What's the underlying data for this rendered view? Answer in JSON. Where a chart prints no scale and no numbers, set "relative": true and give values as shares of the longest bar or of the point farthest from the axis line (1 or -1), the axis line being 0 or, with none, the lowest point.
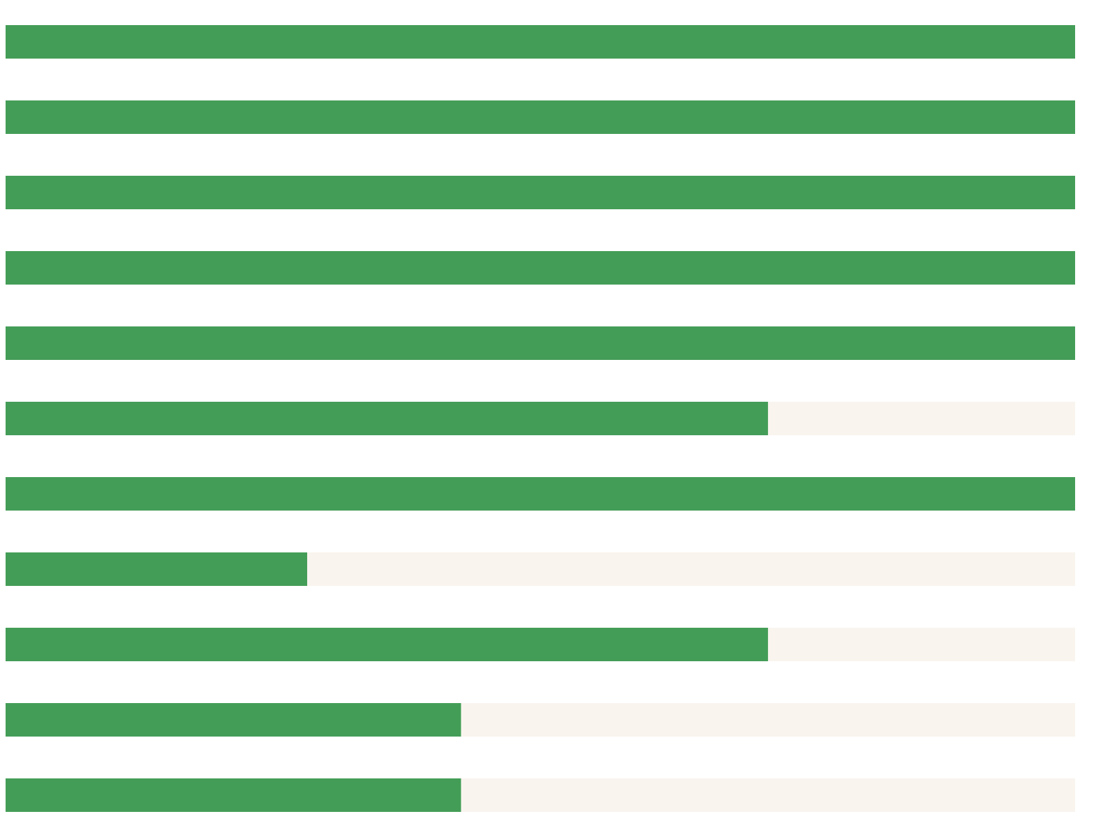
{
  "chart_data": {
    "type": "bar",
    "orientation": "horizontal",
    "relative": true,
    "stacked": true,
    "categories": [
      null,
      null,
      null,
      null,
      null,
      null,
      null,
      null,
      null,
      null,
      null
    ],
    "series": [
      {
        "color": "#449d57",
        "values": [
          1,
          1,
          1,
          1,
          1,
          0.713,
          1,
          0.282,
          0.713,
          0.426,
          0.426
        ]
      },
      {
        "color": "#f9f4ee",
        "values": [
          0,
          0,
          0,
          0,
          0,
          0.287,
          0,
          0.718,
          0.287,
          0.574,
          0.574
        ]
      }
    ]
  }
}
